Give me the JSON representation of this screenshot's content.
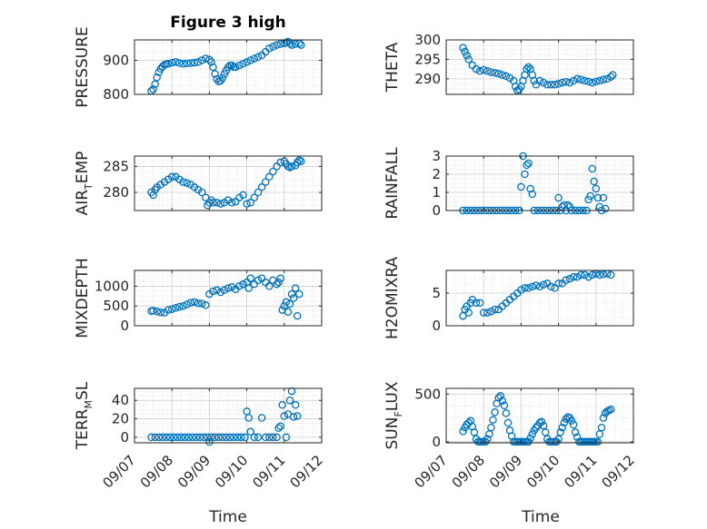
{
  "figure": {
    "title": "Figure 3 high",
    "xlabel": "Time"
  },
  "style": {
    "marker_color": "#0072BD",
    "grid_color": "#d8d8d8",
    "axis_color": "#262626"
  },
  "chart_data": [
    {
      "type": "scatter",
      "title": "Figure 3 high",
      "ylabel": "PRESSURE",
      "xlabel": "",
      "ylim": [
        800,
        960
      ],
      "yticks": [
        800,
        900
      ],
      "xlim": [
        "09/07",
        "09/12"
      ],
      "xticks": [
        "09/07",
        "09/08",
        "09/09",
        "09/10",
        "09/11",
        "09/12"
      ],
      "grid": true,
      "series": [
        {
          "x": [
            7.45,
            7.5,
            7.55,
            7.6,
            7.65,
            7.7,
            7.75,
            7.8,
            7.85,
            7.9,
            8.0,
            8.1,
            8.2,
            8.3,
            8.4,
            8.5,
            8.6,
            8.7,
            8.8,
            8.9,
            9.0,
            9.05,
            9.1,
            9.15,
            9.2,
            9.25,
            9.3,
            9.35,
            9.4,
            9.45,
            9.5,
            9.55,
            9.6,
            9.65,
            9.7,
            9.8,
            9.9,
            10.0,
            10.1,
            10.2,
            10.3,
            10.4,
            10.5,
            10.6,
            10.7,
            10.8,
            10.9,
            11.0,
            11.05,
            11.1,
            11.15,
            11.2,
            11.3,
            11.4,
            11.45
          ],
          "y": [
            810,
            815,
            830,
            850,
            865,
            875,
            882,
            887,
            889,
            890,
            893,
            895,
            892,
            890,
            891,
            892,
            893,
            895,
            900,
            905,
            902,
            895,
            880,
            860,
            845,
            838,
            840,
            848,
            860,
            870,
            880,
            885,
            885,
            880,
            880,
            885,
            890,
            895,
            900,
            905,
            910,
            915,
            925,
            935,
            940,
            945,
            948,
            950,
            952,
            955,
            950,
            945,
            948,
            950,
            945
          ]
        }
      ]
    },
    {
      "type": "scatter",
      "title": "",
      "ylabel": "THETA",
      "xlabel": "",
      "ylim": [
        286,
        300
      ],
      "yticks": [
        290,
        295,
        300
      ],
      "xlim": [
        "09/07",
        "09/12"
      ],
      "xticks": [
        "09/07",
        "09/08",
        "09/09",
        "09/10",
        "09/11",
        "09/12"
      ],
      "grid": true,
      "series": [
        {
          "x": [
            7.45,
            7.5,
            7.55,
            7.6,
            7.7,
            7.8,
            7.9,
            8.0,
            8.1,
            8.2,
            8.3,
            8.4,
            8.5,
            8.6,
            8.7,
            8.8,
            8.85,
            8.9,
            8.95,
            9.0,
            9.05,
            9.1,
            9.15,
            9.2,
            9.25,
            9.3,
            9.35,
            9.4,
            9.5,
            9.6,
            9.7,
            9.8,
            9.9,
            10.0,
            10.1,
            10.2,
            10.3,
            10.4,
            10.5,
            10.6,
            10.7,
            10.8,
            10.9,
            11.0,
            11.1,
            11.2,
            11.3,
            11.4,
            11.45
          ],
          "y": [
            298,
            297,
            296,
            295,
            293.5,
            292.5,
            292,
            292.3,
            292,
            291.7,
            291.5,
            291.3,
            291,
            290.7,
            290.2,
            289.5,
            288,
            287,
            287.3,
            288,
            289.5,
            291,
            292.5,
            293,
            292.5,
            291,
            289.5,
            288.5,
            289.5,
            289,
            288.5,
            288.5,
            288.5,
            288.7,
            289,
            289.2,
            289,
            289.5,
            290,
            289.8,
            289.5,
            289.3,
            289,
            289.3,
            289.5,
            289.8,
            290,
            290.5,
            291
          ]
        }
      ]
    },
    {
      "type": "scatter",
      "title": "",
      "ylabel": "AIR_TEMP",
      "xlabel": "",
      "ylim": [
        276.5,
        287
      ],
      "yticks": [
        280,
        285
      ],
      "xlim": [
        "09/07",
        "09/12"
      ],
      "xticks": [
        "09/07",
        "09/08",
        "09/09",
        "09/10",
        "09/11",
        "09/12"
      ],
      "grid": true,
      "series": [
        {
          "x": [
            7.45,
            7.5,
            7.55,
            7.6,
            7.7,
            7.8,
            7.9,
            8.0,
            8.1,
            8.2,
            8.3,
            8.4,
            8.5,
            8.6,
            8.7,
            8.8,
            8.9,
            8.95,
            9.0,
            9.05,
            9.1,
            9.2,
            9.3,
            9.4,
            9.5,
            9.6,
            9.7,
            9.8,
            9.9,
            10.0,
            10.1,
            10.2,
            10.3,
            10.4,
            10.5,
            10.6,
            10.7,
            10.8,
            10.9,
            11.0,
            11.05,
            11.1,
            11.15,
            11.2,
            11.3,
            11.35,
            11.4,
            11.45
          ],
          "y": [
            280,
            279.5,
            280.5,
            281,
            281.5,
            282,
            282.5,
            283,
            283,
            282.5,
            282,
            281.8,
            281.5,
            281,
            280.5,
            280,
            279,
            277.5,
            278,
            278.5,
            278,
            278,
            277.8,
            278,
            278.5,
            278,
            278.2,
            279,
            279.5,
            277.8,
            278,
            279,
            280,
            281,
            282,
            283,
            284,
            285,
            285.8,
            286,
            285.5,
            285,
            284.8,
            285,
            285.2,
            285.8,
            286.2,
            286
          ]
        }
      ]
    },
    {
      "type": "scatter",
      "title": "",
      "ylabel": "RAINFALL",
      "xlabel": "",
      "ylim": [
        0,
        3
      ],
      "yticks": [
        0,
        1,
        2,
        3
      ],
      "xlim": [
        "09/07",
        "09/12"
      ],
      "xticks": [
        "09/07",
        "09/08",
        "09/09",
        "09/10",
        "09/11",
        "09/12"
      ],
      "grid": true,
      "series": [
        {
          "x": [
            7.45,
            7.55,
            7.65,
            7.75,
            7.85,
            7.95,
            8.05,
            8.15,
            8.25,
            8.35,
            8.45,
            8.55,
            8.65,
            8.75,
            8.85,
            8.95,
            9.0,
            9.05,
            9.1,
            9.15,
            9.2,
            9.25,
            9.3,
            9.35,
            9.45,
            9.55,
            9.65,
            9.75,
            9.85,
            9.95,
            10.0,
            10.05,
            10.1,
            10.15,
            10.2,
            10.25,
            10.3,
            10.35,
            10.45,
            10.55,
            10.65,
            10.75,
            10.8,
            10.85,
            10.9,
            10.95,
            11.0,
            11.05,
            11.1,
            11.15,
            11.2,
            11.25
          ],
          "y": [
            0,
            0,
            0,
            0,
            0,
            0,
            0,
            0,
            0,
            0,
            0,
            0,
            0,
            0,
            0,
            0,
            1.3,
            3.0,
            2.0,
            2.5,
            2.6,
            1.2,
            0.9,
            0,
            0,
            0,
            0,
            0,
            0,
            0,
            0.7,
            0,
            0.2,
            0.3,
            0,
            0.3,
            0.2,
            0,
            0,
            0,
            0,
            0,
            0.6,
            0.8,
            2.3,
            1.6,
            1.2,
            0.7,
            0.2,
            0,
            0.7,
            0.1
          ]
        }
      ]
    },
    {
      "type": "scatter",
      "title": "",
      "ylabel": "MIXDEPTH",
      "xlabel": "",
      "ylim": [
        0,
        1400
      ],
      "yticks": [
        0,
        500,
        1000
      ],
      "xlim": [
        "09/07",
        "09/12"
      ],
      "xticks": [
        "09/07",
        "09/08",
        "09/09",
        "09/10",
        "09/11",
        "09/12"
      ],
      "grid": true,
      "series": [
        {
          "x": [
            7.45,
            7.5,
            7.6,
            7.7,
            7.8,
            7.9,
            8.0,
            8.1,
            8.2,
            8.3,
            8.4,
            8.5,
            8.6,
            8.7,
            8.8,
            8.9,
            9.0,
            9.1,
            9.2,
            9.3,
            9.4,
            9.5,
            9.6,
            9.7,
            9.8,
            9.9,
            10.0,
            10.05,
            10.1,
            10.2,
            10.3,
            10.4,
            10.5,
            10.6,
            10.7,
            10.8,
            10.85,
            10.9,
            10.95,
            11.0,
            11.05,
            11.1,
            11.15,
            11.2,
            11.25,
            11.3,
            11.35,
            11.4
          ],
          "y": [
            370,
            380,
            360,
            340,
            330,
            400,
            420,
            450,
            480,
            500,
            540,
            580,
            600,
            570,
            560,
            520,
            800,
            870,
            900,
            850,
            900,
            950,
            980,
            920,
            1000,
            1050,
            1100,
            950,
            1200,
            1050,
            1150,
            1200,
            1100,
            1000,
            1150,
            1050,
            1100,
            1200,
            400,
            500,
            600,
            350,
            550,
            800,
            700,
            950,
            250,
            800
          ]
        }
      ]
    },
    {
      "type": "scatter",
      "title": "",
      "ylabel": "H2OMIXRA",
      "xlabel": "",
      "ylim": [
        0,
        8.5
      ],
      "yticks": [
        0,
        5
      ],
      "xlim": [
        "09/07",
        "09/12"
      ],
      "xticks": [
        "09/07",
        "09/08",
        "09/09",
        "09/10",
        "09/11",
        "09/12"
      ],
      "grid": true,
      "series": [
        {
          "x": [
            7.45,
            7.5,
            7.55,
            7.6,
            7.65,
            7.7,
            7.8,
            7.9,
            8.0,
            8.1,
            8.2,
            8.3,
            8.4,
            8.5,
            8.6,
            8.7,
            8.8,
            8.9,
            9.0,
            9.1,
            9.2,
            9.3,
            9.4,
            9.5,
            9.6,
            9.7,
            9.8,
            9.9,
            10.0,
            10.1,
            10.2,
            10.3,
            10.4,
            10.5,
            10.6,
            10.7,
            10.8,
            10.9,
            11.0,
            11.1,
            11.2,
            11.3,
            11.4
          ],
          "y": [
            1.5,
            2.5,
            3.0,
            2.0,
            3.5,
            4.0,
            3.5,
            3.5,
            2.0,
            2.0,
            2.2,
            2.5,
            2.5,
            3.0,
            3.5,
            4.0,
            4.5,
            5.0,
            5.5,
            5.8,
            5.8,
            6.0,
            6.2,
            6.0,
            6.3,
            6.5,
            6.0,
            5.8,
            6.5,
            6.5,
            7.0,
            7.2,
            7.5,
            7.5,
            7.8,
            7.8,
            7.5,
            7.8,
            8.0,
            7.8,
            7.9,
            8.0,
            7.8
          ]
        }
      ]
    },
    {
      "type": "scatter",
      "title": "",
      "ylabel": "TERR_MSL",
      "xlabel": "Time",
      "ylim": [
        -6,
        53
      ],
      "yticks": [
        0,
        20,
        40
      ],
      "xlim": [
        "09/07",
        "09/12"
      ],
      "xticks": [
        "09/07",
        "09/08",
        "09/09",
        "09/10",
        "09/11",
        "09/12"
      ],
      "grid": true,
      "series": [
        {
          "x": [
            7.45,
            7.55,
            7.65,
            7.75,
            7.85,
            7.95,
            8.05,
            8.15,
            8.25,
            8.35,
            8.45,
            8.55,
            8.65,
            8.75,
            8.85,
            8.95,
            9.0,
            9.05,
            9.15,
            9.25,
            9.35,
            9.45,
            9.55,
            9.65,
            9.75,
            9.85,
            9.95,
            10.0,
            10.05,
            10.1,
            10.2,
            10.3,
            10.4,
            10.5,
            10.6,
            10.7,
            10.8,
            10.85,
            10.9,
            10.95,
            11.0,
            11.05,
            11.1,
            11.15,
            11.2,
            11.25,
            11.3,
            11.35
          ],
          "y": [
            0,
            0,
            0,
            0,
            0,
            0,
            0,
            0,
            0,
            0,
            0,
            0,
            0,
            0,
            0,
            0,
            -5,
            0,
            0,
            0,
            0,
            0,
            0,
            0,
            0,
            0,
            0,
            28,
            21,
            6,
            0,
            0,
            21,
            0,
            0,
            0,
            0,
            10,
            12,
            35,
            23,
            0,
            25,
            40,
            50,
            22,
            35,
            23
          ]
        }
      ]
    },
    {
      "type": "scatter",
      "title": "",
      "ylabel": "SUN_FLUX",
      "xlabel": "Time",
      "ylim": [
        -10,
        560
      ],
      "yticks": [
        0,
        500
      ],
      "xlim": [
        "09/07",
        "09/12"
      ],
      "xticks": [
        "09/07",
        "09/08",
        "09/09",
        "09/10",
        "09/11",
        "09/12"
      ],
      "grid": true,
      "series": [
        {
          "x": [
            7.45,
            7.5,
            7.55,
            7.6,
            7.65,
            7.7,
            7.75,
            7.8,
            7.85,
            7.9,
            7.95,
            8.0,
            8.05,
            8.1,
            8.15,
            8.2,
            8.25,
            8.3,
            8.35,
            8.4,
            8.45,
            8.5,
            8.55,
            8.6,
            8.65,
            8.7,
            8.75,
            8.8,
            8.85,
            8.9,
            8.95,
            9.0,
            9.05,
            9.1,
            9.15,
            9.2,
            9.25,
            9.3,
            9.35,
            9.4,
            9.45,
            9.5,
            9.55,
            9.6,
            9.65,
            9.7,
            9.75,
            9.8,
            9.85,
            9.9,
            9.95,
            10.0,
            10.05,
            10.1,
            10.15,
            10.2,
            10.25,
            10.3,
            10.35,
            10.4,
            10.45,
            10.5,
            10.55,
            10.6,
            10.65,
            10.7,
            10.75,
            10.8,
            10.85,
            10.9,
            10.95,
            11.0,
            11.05,
            11.1,
            11.15,
            11.2,
            11.25,
            11.3,
            11.35,
            11.4
          ],
          "y": [
            110,
            150,
            180,
            200,
            220,
            160,
            100,
            30,
            0,
            0,
            0,
            0,
            0,
            30,
            80,
            150,
            230,
            310,
            400,
            460,
            480,
            430,
            380,
            300,
            200,
            120,
            60,
            0,
            0,
            0,
            0,
            0,
            0,
            0,
            0,
            0,
            40,
            80,
            120,
            150,
            170,
            200,
            210,
            170,
            100,
            30,
            0,
            0,
            0,
            0,
            0,
            30,
            100,
            150,
            200,
            240,
            260,
            250,
            220,
            180,
            100,
            50,
            0,
            0,
            0,
            0,
            0,
            0,
            0,
            0,
            0,
            0,
            0,
            80,
            150,
            250,
            300,
            320,
            330,
            340
          ]
        }
      ]
    }
  ]
}
